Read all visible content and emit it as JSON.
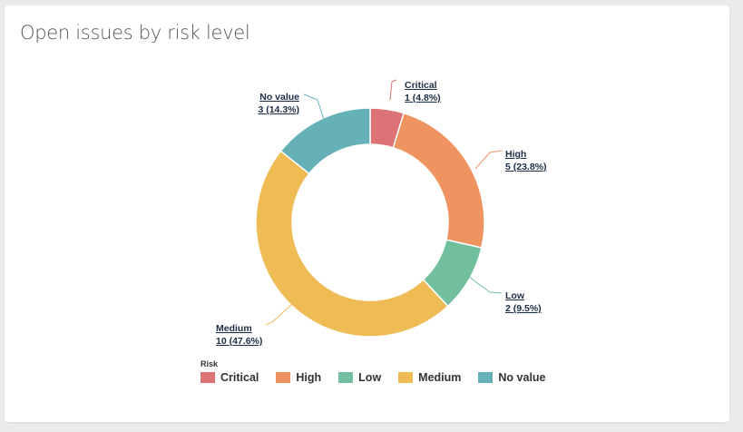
{
  "chart_data": {
    "type": "pie",
    "variant": "donut",
    "title": "Open issues by risk level",
    "legend_title": "Risk",
    "legend_position": "bottom-left",
    "slices": [
      {
        "name": "Critical",
        "value": 1,
        "label": "1 (4.8%)",
        "color": "#dc7176"
      },
      {
        "name": "High",
        "value": 5,
        "label": "5 (23.8%)",
        "color": "#ef9460"
      },
      {
        "name": "Low",
        "value": 2,
        "label": "2 (9.5%)",
        "color": "#71bf9c"
      },
      {
        "name": "Medium",
        "value": 10,
        "label": "10 (47.6%)",
        "color": "#eebb55"
      },
      {
        "name": "No value",
        "value": 3,
        "label": "3 (14.3%)",
        "color": "#66b0b8"
      }
    ]
  }
}
